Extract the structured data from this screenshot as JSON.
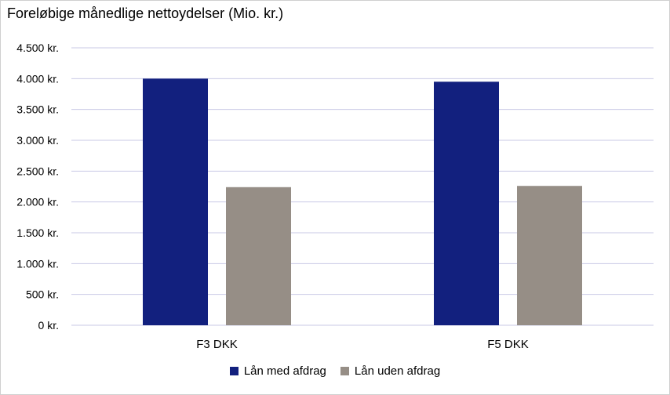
{
  "chart_data": {
    "type": "bar",
    "title": "Foreløbige månedlige nettoydelser (Mio. kr.)",
    "categories": [
      "F3 DKK",
      "F5 DKK"
    ],
    "series": [
      {
        "name": "Lån med afdrag",
        "values": [
          4000,
          3950
        ],
        "color": "#12207e"
      },
      {
        "name": "Lån uden afdrag",
        "values": [
          2240,
          2260
        ],
        "color": "#968e86"
      }
    ],
    "ylim": [
      0,
      4500
    ],
    "yticks": [
      0,
      500,
      1000,
      1500,
      2000,
      2500,
      3000,
      3500,
      4000,
      4500
    ],
    "ytick_labels": [
      "0 kr.",
      "500 kr.",
      "1.000 kr.",
      "1.500 kr.",
      "2.000 kr.",
      "2.500 kr.",
      "3.000 kr.",
      "3.500 kr.",
      "4.000 kr.",
      "4.500 kr."
    ],
    "grid": true,
    "gridline_color": "#c9c9e6",
    "legend_position": "bottom"
  }
}
